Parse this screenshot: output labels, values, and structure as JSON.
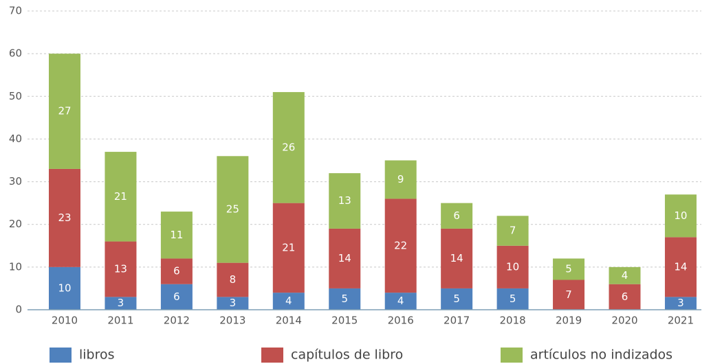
{
  "chart_data": {
    "type": "stacked_bar",
    "categories": [
      "2010",
      "2011",
      "2012",
      "2013",
      "2014",
      "2015",
      "2016",
      "2017",
      "2018",
      "2019",
      "2020",
      "2021"
    ],
    "category_label_colors": [
      "#555555",
      "#555555",
      "#555555",
      "#555555",
      "#e600e6",
      "#e600e6",
      "#e600e6",
      "#e600e6",
      "#e600e6",
      "#e600e6",
      "#e600e6",
      "#e600e6"
    ],
    "series": [
      {
        "name": "libros",
        "color": "#4f81bd",
        "values": [
          10,
          3,
          6,
          3,
          4,
          5,
          4,
          5,
          5,
          0,
          0,
          3
        ]
      },
      {
        "name": "capítulos de libro",
        "color": "#c0504d",
        "values": [
          23,
          13,
          6,
          8,
          21,
          14,
          22,
          14,
          10,
          7,
          6,
          14
        ]
      },
      {
        "name": "artículos no indizados",
        "color": "#9bbb59",
        "values": [
          27,
          21,
          11,
          25,
          26,
          13,
          9,
          6,
          7,
          5,
          4,
          10
        ]
      }
    ],
    "ylim": [
      0,
      70
    ],
    "yticks": [
      0,
      10,
      20,
      30,
      40,
      50,
      60,
      70
    ],
    "grid": true,
    "legend": "bottom"
  }
}
